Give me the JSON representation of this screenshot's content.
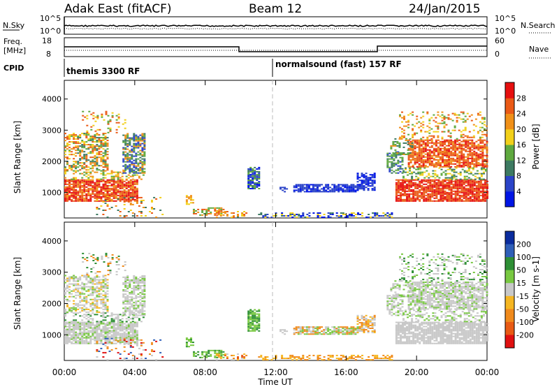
{
  "header": {
    "station": "Adak East (fitACF)",
    "beam": "Beam 12",
    "date": "24/Jan/2015"
  },
  "strip_labels": {
    "nsky": "N.Sky",
    "nsearch": "N.Search",
    "freq_line1": "Freq.",
    "freq_line2": "[MHz]",
    "nave": "Nave",
    "cpid": "CPID",
    "noise_ticks_left": [
      "10^5",
      "10^0"
    ],
    "noise_ticks_right": [
      "10^5",
      "10^0"
    ],
    "freq_ticks": [
      "18",
      "8"
    ],
    "nave_ticks": [
      "60",
      "0"
    ]
  },
  "cpid_labels": [
    "themis 3300 RF",
    "normalsound (fast) 157 RF"
  ],
  "colors": {
    "noise_line": "#000000",
    "grid": "#bbbbbb",
    "ground_scatter": "#c0c0c0"
  },
  "chart_data": [
    {
      "type": "heatmap",
      "name": "power",
      "ylabel": "Slant Range [km]",
      "yticks": [
        "1000",
        "2000",
        "3000",
        "4000"
      ],
      "colorbar_label": "Power [dB]",
      "colorbar_ticks": [
        "4",
        "8",
        "12",
        "16",
        "20",
        "24",
        "28"
      ],
      "colorbar_colors": [
        "#0015e5",
        "#2b44c8",
        "#3d7a62",
        "#5fa93f",
        "#f2d01a",
        "#f09018",
        "#ea5a16",
        "#e60f0f"
      ],
      "xlim": [
        "00:00",
        "00:00"
      ],
      "ylim_km": [
        180,
        4600
      ]
    },
    {
      "type": "heatmap",
      "name": "velocity",
      "ylabel": "Slant Range [km]",
      "yticks": [
        "1000",
        "2000",
        "3000",
        "4000"
      ],
      "colorbar_label": "Velocity [m s-1]",
      "colorbar_ticks": [
        "200",
        "100",
        "50",
        "15",
        "-15",
        "-50",
        "-100",
        "-200"
      ],
      "colorbar_colors": [
        "#0a2c9e",
        "#2f5fb8",
        "#2e8f35",
        "#78c841",
        "#c8c8c8",
        "#f5b622",
        "#f08a1c",
        "#e85a14",
        "#e01010"
      ],
      "xlim": [
        "00:00",
        "00:00"
      ],
      "ylim_km": [
        180,
        4600
      ]
    }
  ],
  "x_axis": {
    "ticks": [
      "00:00",
      "04:00",
      "08:00",
      "12:00",
      "16:00",
      "20:00",
      "00:00"
    ],
    "label": "Time UT"
  }
}
